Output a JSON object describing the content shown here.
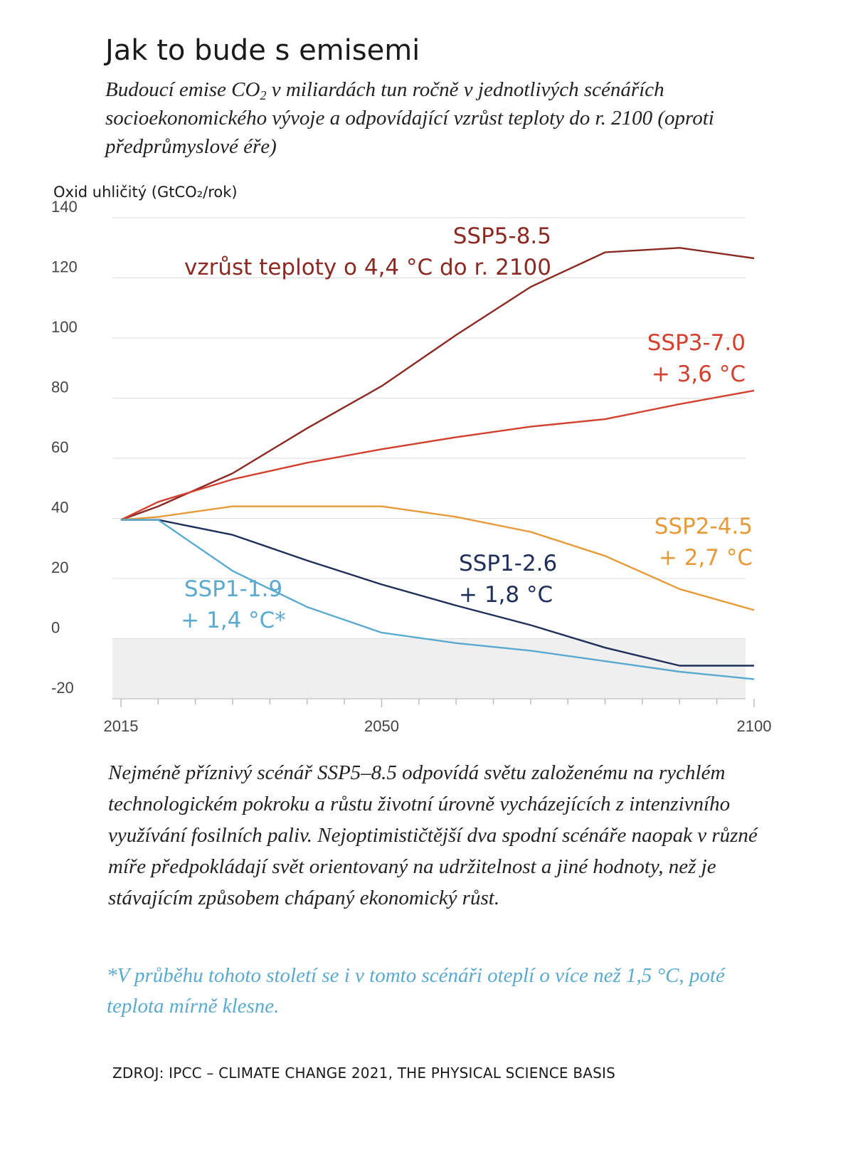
{
  "header": {
    "title": "Jak to bude s emisemi",
    "subtitle_pre": "Budoucí emise CO",
    "subtitle_sub": "2",
    "subtitle_post": " v miliardách tun ročně v jednotlivých scénářích socioekonomického vývoje a odpovídající vzrůst teploty do r. 2100 (oproti předprůmyslové éře)"
  },
  "chart_data": {
    "type": "line",
    "ylabel": "Oxid uhličitý (GtCO₂/rok)",
    "xlim": [
      2015,
      2100
    ],
    "ylim": [
      -20,
      140
    ],
    "yticks": [
      140,
      120,
      100,
      80,
      60,
      40,
      20,
      0,
      -20
    ],
    "xticks": [
      2015,
      2050,
      2100
    ],
    "negative_region_shaded": true,
    "series": [
      {
        "name": "SSP5-8.5",
        "label_lines": [
          "SSP5-8.5",
          "vzrůst teploty o 4,4 °C do r. 2100"
        ],
        "color": "#8b2a22",
        "x": [
          2015,
          2020,
          2030,
          2040,
          2050,
          2060,
          2070,
          2080,
          2090,
          2100
        ],
        "y": [
          39.5,
          44,
          55,
          70,
          84,
          101,
          117,
          128.5,
          130,
          126.5
        ]
      },
      {
        "name": "SSP3-7.0",
        "label_lines": [
          "SSP3-7.0",
          "+ 3,6 °C"
        ],
        "color": "#d2412f",
        "x": [
          2015,
          2020,
          2030,
          2040,
          2050,
          2060,
          2070,
          2080,
          2090,
          2100
        ],
        "y": [
          39.5,
          45.5,
          53,
          58.5,
          63,
          67,
          70.5,
          73,
          78,
          82.5
        ]
      },
      {
        "name": "SSP2-4.5",
        "label_lines": [
          "SSP2-4.5",
          "+ 2,7 °C"
        ],
        "color": "#e69a38",
        "x": [
          2015,
          2020,
          2030,
          2040,
          2050,
          2060,
          2070,
          2080,
          2090,
          2100
        ],
        "y": [
          39.5,
          40.5,
          44,
          44,
          44,
          40.5,
          35.5,
          27.5,
          16.5,
          9.5
        ]
      },
      {
        "name": "SSP1-2.6",
        "label_lines": [
          "SSP1-2.6",
          "+ 1,8 °C"
        ],
        "color": "#1f2f5a",
        "x": [
          2015,
          2020,
          2030,
          2040,
          2050,
          2060,
          2070,
          2080,
          2090,
          2100
        ],
        "y": [
          39.5,
          39.5,
          34.5,
          26,
          18,
          11,
          4.5,
          -3,
          -9,
          -9
        ]
      },
      {
        "name": "SSP1-1.9",
        "label_lines": [
          "SSP1-1.9",
          "+ 1,4 °C*"
        ],
        "color": "#5aaad0",
        "x": [
          2015,
          2020,
          2030,
          2040,
          2050,
          2060,
          2070,
          2080,
          2090,
          2100
        ],
        "y": [
          39.5,
          39.5,
          22.5,
          10.5,
          2,
          -1.5,
          -4,
          -7.5,
          -11,
          -13.5
        ]
      }
    ]
  },
  "caption": "Nejméně příznivý scénář SSP5–8.5 odpovídá světu založenému na rychlém technologickém pokroku a růstu životní úrovně vycházejících z intenzivního využívání fosilních paliv. Nejoptimističtější dva spodní scénáře naopak v různé míře předpokládají svět orientovaný na udržitelnost a jiné hodnoty, než je stávajícím způsobem chápaný ekonomický růst.",
  "footnote": "*V průběhu tohoto století se i v tomto scénáři oteplí o více než 1,5 °C, poté teplota mírně klesne.",
  "source": "ZDROJ: IPCC – CLIMATE CHANGE 2021, THE PHYSICAL SCIENCE BASIS"
}
